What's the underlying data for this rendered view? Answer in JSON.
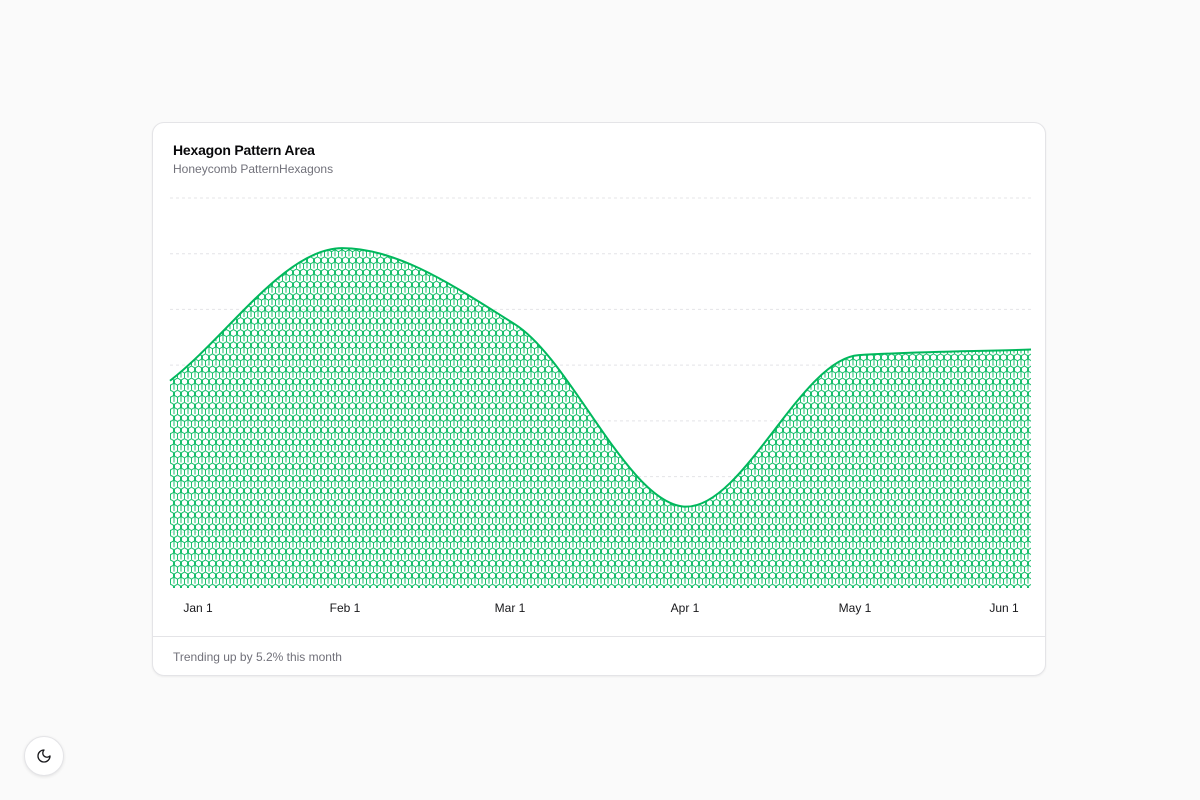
{
  "card": {
    "title": "Hexagon Pattern Area",
    "subtitle": "Honeycomb PatternHexagons",
    "footer": "Trending up by 5.2% this month"
  },
  "theme_toggle": {
    "icon": "moon-icon"
  },
  "colors": {
    "accent": "#00b85c",
    "grid": "#e4e4e7",
    "background": "#fafafa"
  },
  "chart_data": {
    "type": "area",
    "pattern": "hexagon",
    "x_ticks": [
      "Jan 1",
      "Feb 1",
      "Mar 1",
      "Apr 1",
      "May 1",
      "Jun 1"
    ],
    "points": [
      {
        "x": "2024-01-01",
        "y": 186
      },
      {
        "x": "2024-02-01",
        "y": 305
      },
      {
        "x": "2024-03-01",
        "y": 237
      },
      {
        "x": "2024-04-01",
        "y": 73
      },
      {
        "x": "2024-05-01",
        "y": 209
      },
      {
        "x": "2024-06-01",
        "y": 214
      }
    ],
    "ylim": [
      0,
      350
    ],
    "grid": true,
    "y_axis_visible": false
  }
}
